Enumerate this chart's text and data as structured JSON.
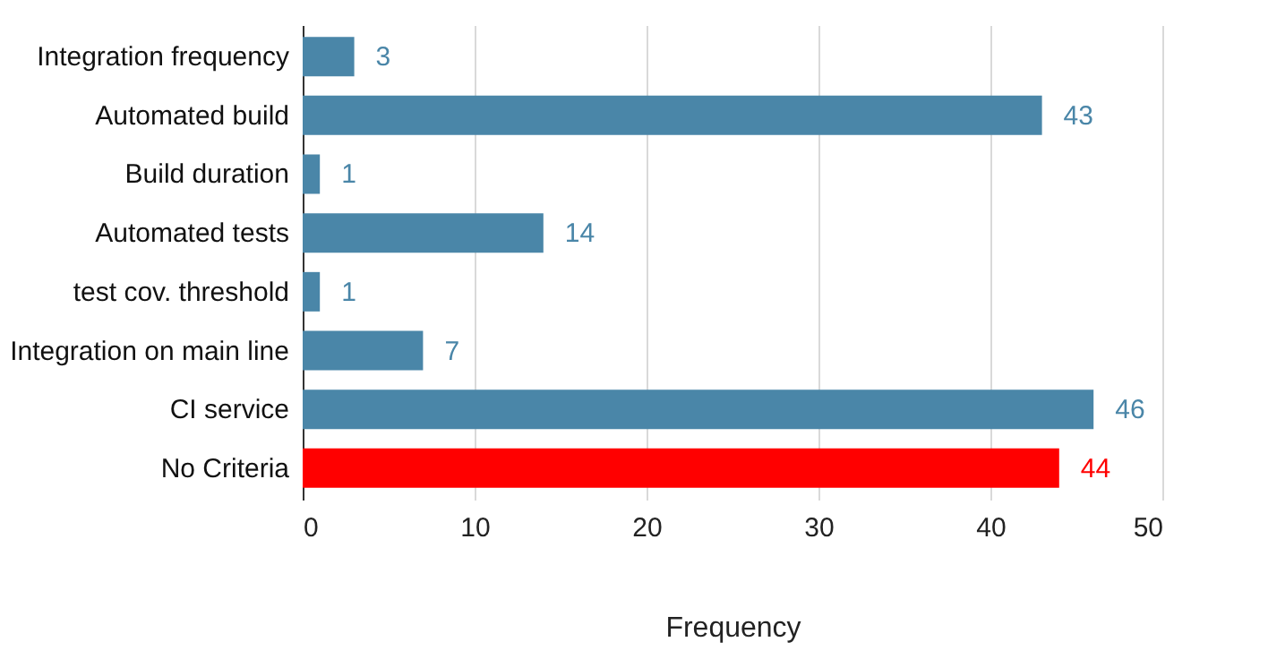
{
  "chart_data": {
    "type": "bar",
    "orientation": "horizontal",
    "xlabel": "Frequency",
    "categories": [
      "Integration frequency",
      "Automated build",
      "Build duration",
      "Automated tests",
      "test cov. threshold",
      "Integration on main line",
      "CI service",
      "No Criteria"
    ],
    "values": [
      3,
      43,
      1,
      14,
      1,
      7,
      46,
      44
    ],
    "colors": [
      "#4a86a8",
      "#4a86a8",
      "#4a86a8",
      "#4a86a8",
      "#4a86a8",
      "#4a86a8",
      "#4a86a8",
      "#ff0000"
    ],
    "xlim": [
      0,
      50
    ],
    "xticks": [
      0,
      10,
      20,
      30,
      40,
      50
    ],
    "grid": "x",
    "data_labels": true
  }
}
